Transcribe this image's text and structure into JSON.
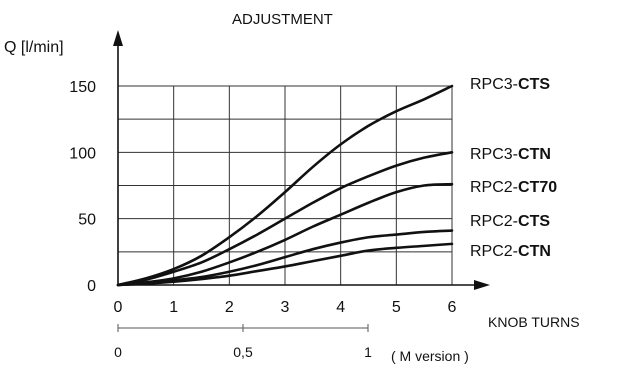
{
  "chart_data": {
    "type": "line",
    "title": "ADJUSTMENT",
    "ylabel": "Q [l/min]",
    "xlabel": "KNOB TURNS",
    "xlim": [
      0,
      6
    ],
    "ylim": [
      0,
      150
    ],
    "x_ticks": [
      0,
      1,
      2,
      3,
      4,
      5,
      6
    ],
    "y_ticks": [
      0,
      50,
      100,
      150
    ],
    "grid": true,
    "secondary_axis": {
      "label": "( M version )",
      "ticks": [
        {
          "value": 0,
          "label": "0"
        },
        {
          "value": 0.5,
          "label": "0,5"
        },
        {
          "value": 1,
          "label": "1"
        }
      ]
    },
    "series": [
      {
        "name_prefix": "RPC3-",
        "name_bold": "CTS",
        "x": [
          0,
          0.5,
          1,
          1.5,
          2,
          2.5,
          3,
          3.5,
          4,
          4.5,
          5,
          5.5,
          6
        ],
        "y": [
          0,
          5,
          12,
          22,
          36,
          52,
          70,
          89,
          106,
          120,
          131,
          140,
          150
        ]
      },
      {
        "name_prefix": "RPC3-",
        "name_bold": "CTN",
        "x": [
          0,
          0.5,
          1,
          1.5,
          2,
          2.5,
          3,
          3.5,
          4,
          4.5,
          5,
          5.5,
          6
        ],
        "y": [
          0,
          4,
          10,
          17,
          27,
          38,
          50,
          62,
          73,
          82,
          90,
          96,
          100
        ]
      },
      {
        "name_prefix": "RPC2-",
        "name_bold": "CT70",
        "x": [
          0,
          0.5,
          1,
          1.5,
          2,
          2.5,
          3,
          3.5,
          4,
          4.5,
          5,
          5.5,
          6
        ],
        "y": [
          0,
          2,
          5,
          10,
          17,
          25,
          34,
          44,
          53,
          62,
          70,
          75,
          76
        ]
      },
      {
        "name_prefix": "RPC2-",
        "name_bold": "CTS",
        "x": [
          0,
          0.5,
          1,
          1.5,
          2,
          2.5,
          3,
          3.5,
          4,
          4.5,
          5,
          5.5,
          6
        ],
        "y": [
          0,
          1.5,
          3.5,
          6,
          10,
          15,
          21,
          27,
          32,
          36,
          38,
          40,
          41
        ]
      },
      {
        "name_prefix": "RPC2-",
        "name_bold": "CTN",
        "x": [
          0,
          0.5,
          1,
          1.5,
          2,
          2.5,
          3,
          3.5,
          4,
          4.5,
          5,
          5.5,
          6
        ],
        "y": [
          0,
          1,
          2.5,
          4.5,
          7,
          10.5,
          14,
          18,
          22,
          26,
          28,
          29.5,
          31
        ]
      }
    ]
  }
}
